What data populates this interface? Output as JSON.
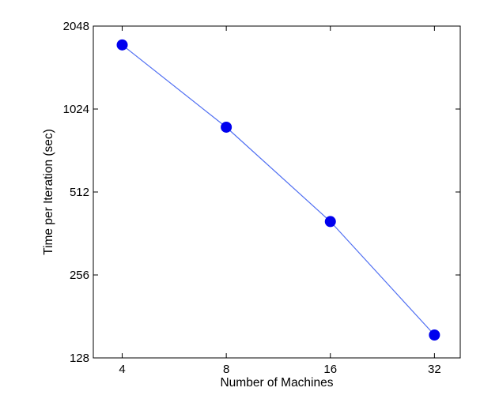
{
  "chart_data": {
    "type": "line",
    "title": "",
    "xlabel": "Number of Machines",
    "ylabel": "Time per Iteration (sec)",
    "x_scale": "log2",
    "y_scale": "log2",
    "xlim": [
      3.3,
      38
    ],
    "ylim": [
      128,
      2048
    ],
    "x_ticks": [
      4,
      8,
      16,
      32
    ],
    "x_tick_labels": [
      "4",
      "8",
      "16",
      "32"
    ],
    "y_ticks": [
      128,
      256,
      512,
      1024,
      2048
    ],
    "y_tick_labels": [
      "128",
      "256",
      "512",
      "1024",
      "2048"
    ],
    "grid": false,
    "legend": "none",
    "series": [
      {
        "x": [
          4,
          8,
          16,
          32
        ],
        "y": [
          1750,
          880,
          400,
          155
        ],
        "line_color": "#4f6ef2",
        "marker_color": "#0000ee",
        "marker": "circle"
      }
    ]
  }
}
